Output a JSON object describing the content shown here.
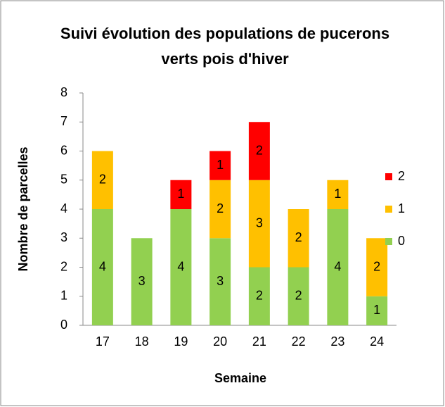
{
  "chart_data": {
    "type": "stacked_bar",
    "title": "Suivi évolution des populations de pucerons verts pois d'hiver",
    "x_label": "Semaine",
    "y_label": "Nombre de parcelles",
    "categories": [
      "17",
      "18",
      "19",
      "20",
      "21",
      "22",
      "23",
      "24"
    ],
    "series": [
      {
        "name": "0",
        "color": "#92d050",
        "values": [
          4,
          3,
          4,
          3,
          2,
          2,
          4,
          1
        ]
      },
      {
        "name": "1",
        "color": "#ffc000",
        "values": [
          2,
          null,
          null,
          2,
          3,
          2,
          1,
          2
        ]
      },
      {
        "name": "2",
        "color": "#ff0000",
        "values": [
          null,
          null,
          1,
          1,
          2,
          null,
          null,
          null
        ]
      }
    ],
    "ylim": [
      0,
      8
    ],
    "yticks": [
      0,
      1,
      2,
      3,
      4,
      5,
      6,
      7,
      8
    ],
    "grid": false,
    "legend": "right"
  }
}
